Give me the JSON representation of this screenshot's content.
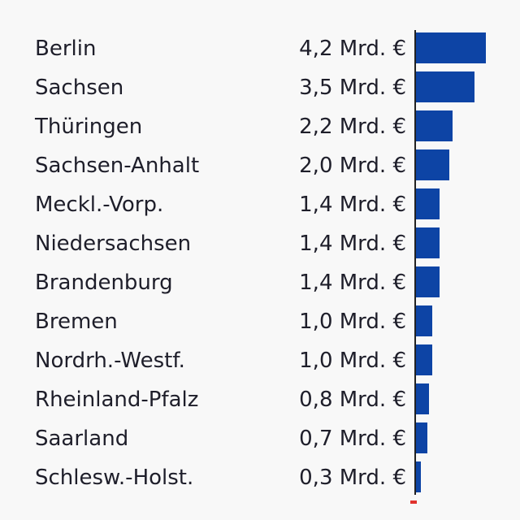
{
  "chart_data": {
    "type": "bar",
    "orientation": "horizontal",
    "categories": [
      "Berlin",
      "Sachsen",
      "Thüringen",
      "Sachsen-Anhalt",
      "Meckl.-Vorp.",
      "Niedersachsen",
      "Brandenburg",
      "Bremen",
      "Nordrh.-Westf.",
      "Rheinland-Pfalz",
      "Saarland",
      "Schlesw.-Holst."
    ],
    "values": [
      4.2,
      3.5,
      2.2,
      2.0,
      1.4,
      1.4,
      1.4,
      1.0,
      1.0,
      0.8,
      0.7,
      0.3
    ],
    "value_labels": [
      "4,2 Mrd. €",
      "3,5 Mrd. €",
      "2,2 Mrd. €",
      "2,0 Mrd. €",
      "1,4 Mrd. €",
      "1,4 Mrd. €",
      "1,4 Mrd. €",
      "1,0 Mrd. €",
      "1,0 Mrd. €",
      "0,8 Mrd. €",
      "0,7 Mrd. €",
      "0,3 Mrd. €"
    ],
    "xlim": [
      0,
      4.2
    ],
    "grid": false,
    "legend": "none",
    "bar_color": "#0d44a5"
  }
}
